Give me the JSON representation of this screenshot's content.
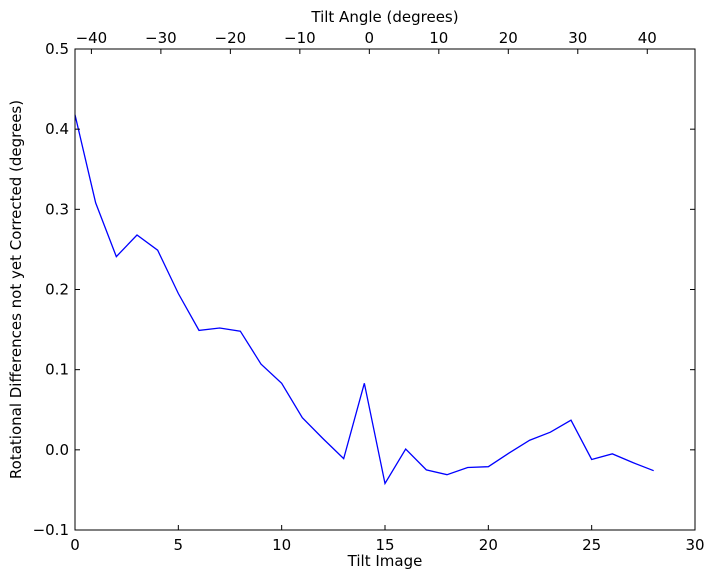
{
  "chart_data": {
    "type": "line",
    "title": "",
    "xlabel": "Tilt Image",
    "ylabel": "Rotational Differences not yet Corrected (degrees)",
    "top_xlabel": "Tilt Angle (degrees)",
    "xlim": [
      0,
      30
    ],
    "ylim": [
      -0.1,
      0.5
    ],
    "top_xlim": [
      -42.36,
      46.87
    ],
    "xticks": [
      0,
      5,
      10,
      15,
      20,
      25,
      30
    ],
    "xtick_labels": [
      "0",
      "5",
      "10",
      "15",
      "20",
      "25",
      "30"
    ],
    "yticks": [
      -0.1,
      0.0,
      0.1,
      0.2,
      0.3,
      0.4,
      0.5
    ],
    "ytick_labels": [
      "−0.1",
      "0.0",
      "0.1",
      "0.2",
      "0.3",
      "0.4",
      "0.5"
    ],
    "top_xticks": [
      -40,
      -30,
      -20,
      -10,
      0,
      10,
      20,
      30,
      40
    ],
    "top_xtick_labels": [
      "−40",
      "−30",
      "−20",
      "−10",
      "0",
      "10",
      "20",
      "30",
      "40"
    ],
    "grid": false,
    "series": [
      {
        "color": "#0000ff",
        "x": [
          0,
          1,
          2,
          3,
          4,
          5,
          6,
          7,
          8,
          9,
          10,
          11,
          12,
          13,
          14,
          15,
          16,
          17,
          18,
          19,
          20,
          21,
          22,
          23,
          24,
          25,
          26,
          27,
          28
        ],
        "values": [
          0.418,
          0.308,
          0.241,
          0.268,
          0.249,
          0.195,
          0.149,
          0.152,
          0.148,
          0.107,
          0.083,
          0.04,
          0.014,
          -0.011,
          0.083,
          -0.042,
          0.001,
          -0.025,
          -0.031,
          -0.022,
          -0.021,
          -0.004,
          0.012,
          0.022,
          0.037,
          -0.012,
          -0.005,
          -0.016,
          -0.026
        ]
      }
    ]
  }
}
